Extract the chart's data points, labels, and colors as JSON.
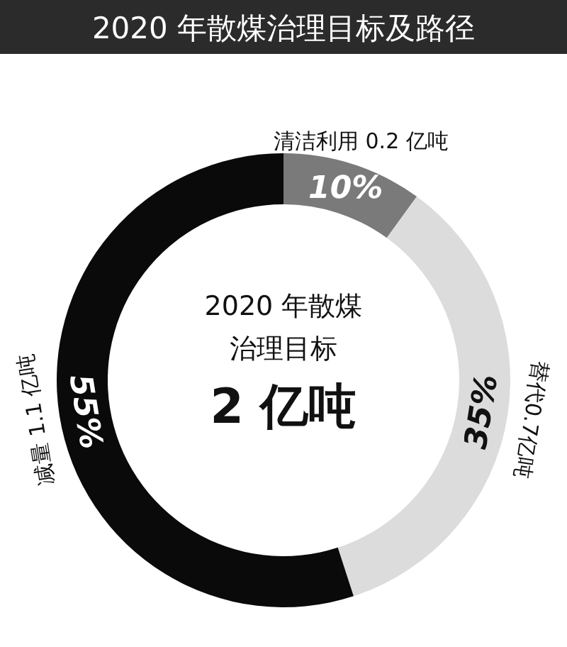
{
  "chart_data": {
    "type": "donut",
    "title": "2020 年散煤治理目标及路径",
    "categories": [
      "清洁利用 0.2 亿吨",
      "替代0.7亿吨",
      "减量 1.1 亿吨"
    ],
    "values": [
      10,
      35,
      55
    ],
    "colors": [
      "#7a7a7a",
      "#dcdcdc",
      "#0a0a0a"
    ],
    "value_labels": [
      "10%",
      "35%",
      "55%"
    ],
    "annotations": [
      "2020 年散煤",
      "治理目标",
      "2 亿吨"
    ]
  }
}
